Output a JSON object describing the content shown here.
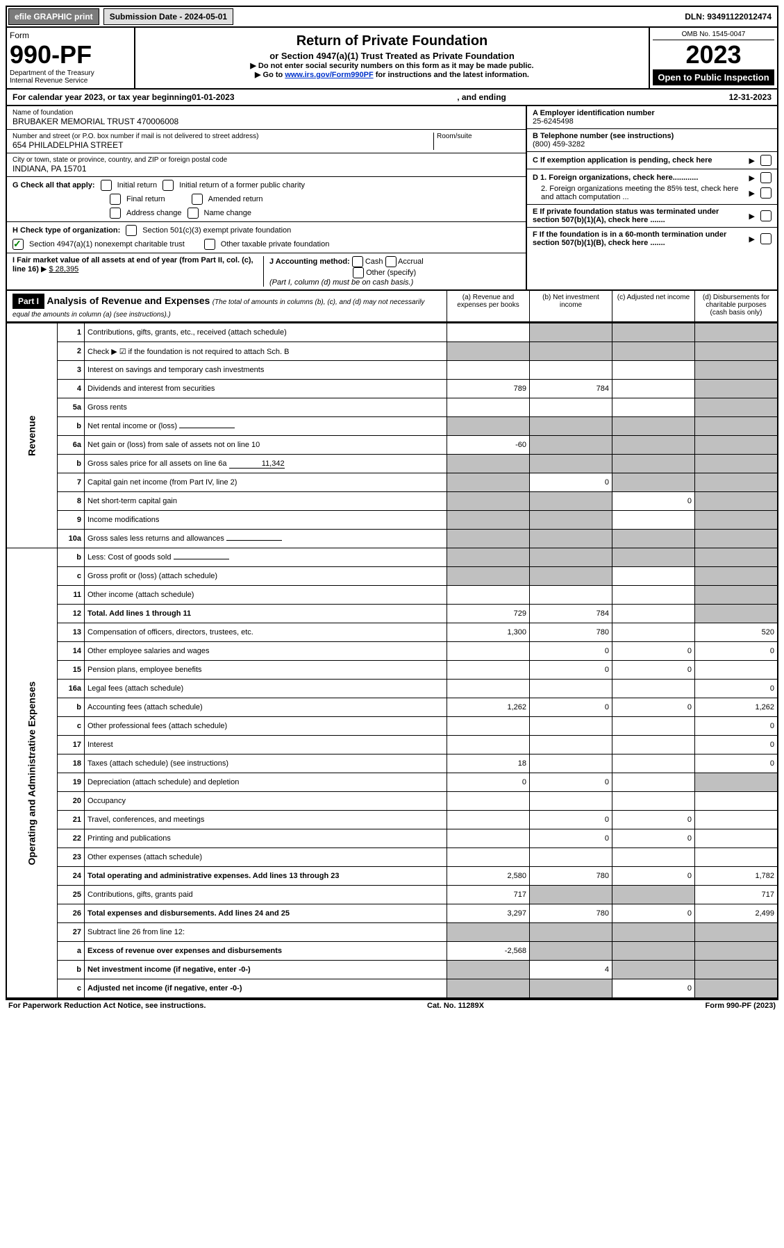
{
  "topbar": {
    "efile": "efile GRAPHIC print",
    "submission": "Submission Date - 2024-05-01",
    "dln": "DLN: 93491122012474"
  },
  "header": {
    "form": "Form",
    "number": "990-PF",
    "dept": "Department of the Treasury",
    "irs": "Internal Revenue Service",
    "title": "Return of Private Foundation",
    "subtitle": "or Section 4947(a)(1) Trust Treated as Private Foundation",
    "note1": "▶ Do not enter social security numbers on this form as it may be made public.",
    "note2_prefix": "▶ Go to ",
    "note2_link": "www.irs.gov/Form990PF",
    "note2_suffix": " for instructions and the latest information.",
    "omb": "OMB No. 1545-0047",
    "year": "2023",
    "open": "Open to Public Inspection"
  },
  "calyear": {
    "prefix": "For calendar year 2023, or tax year beginning ",
    "begin": "01-01-2023",
    "mid": " , and ending ",
    "end": "12-31-2023"
  },
  "info": {
    "name_label": "Name of foundation",
    "name": "BRUBAKER MEMORIAL TRUST 470006008",
    "addr_label": "Number and street (or P.O. box number if mail is not delivered to street address)",
    "addr": "654 PHILADELPHIA STREET",
    "room_label": "Room/suite",
    "city_label": "City or town, state or province, country, and ZIP or foreign postal code",
    "city": "INDIANA, PA  15701",
    "a_label": "A Employer identification number",
    "a_val": "25-6245498",
    "b_label": "B Telephone number (see instructions)",
    "b_val": "(800) 459-3282",
    "c_label": "C If exemption application is pending, check here",
    "d1": "D 1. Foreign organizations, check here............",
    "d2": "2. Foreign organizations meeting the 85% test, check here and attach computation ...",
    "e": "E  If private foundation status was terminated under section 507(b)(1)(A), check here .......",
    "f": "F  If the foundation is in a 60-month termination under section 507(b)(1)(B), check here .......",
    "g": "G Check all that apply:",
    "g_initial": "Initial return",
    "g_initial_former": "Initial return of a former public charity",
    "g_final": "Final return",
    "g_amended": "Amended return",
    "g_address": "Address change",
    "g_name": "Name change",
    "h": "H Check type of organization:",
    "h_501c3": "Section 501(c)(3) exempt private foundation",
    "h_4947": "Section 4947(a)(1) nonexempt charitable trust",
    "h_other": "Other taxable private foundation",
    "i": "I Fair market value of all assets at end of year (from Part II, col. (c), line 16)",
    "i_val": "$  28,395",
    "j": "J Accounting method:",
    "j_cash": "Cash",
    "j_accrual": "Accrual",
    "j_other": "Other (specify)",
    "j_note": "(Part I, column (d) must be on cash basis.)"
  },
  "part1": {
    "label": "Part I",
    "title": "Analysis of Revenue and Expenses",
    "title_note": " (The total of amounts in columns (b), (c), and (d) may not necessarily equal the amounts in column (a) (see instructions).)",
    "col_a": "(a) Revenue and expenses per books",
    "col_b": "(b) Net investment income",
    "col_c": "(c) Adjusted net income",
    "col_d": "(d) Disbursements for charitable purposes (cash basis only)"
  },
  "side": {
    "revenue": "Revenue",
    "expenses": "Operating and Administrative Expenses"
  },
  "rows": [
    {
      "n": "1",
      "label": "Contributions, gifts, grants, etc., received (attach schedule)",
      "a": "",
      "b": "gray",
      "c": "gray",
      "d": "gray"
    },
    {
      "n": "2",
      "label": "Check ▶ ☑ if the foundation is not required to attach Sch. B",
      "a": "gray",
      "b": "gray",
      "c": "gray",
      "d": "gray"
    },
    {
      "n": "3",
      "label": "Interest on savings and temporary cash investments",
      "a": "",
      "b": "",
      "c": "",
      "d": "gray"
    },
    {
      "n": "4",
      "label": "Dividends and interest from securities",
      "a": "789",
      "b": "784",
      "c": "",
      "d": "gray"
    },
    {
      "n": "5a",
      "label": "Gross rents",
      "a": "",
      "b": "",
      "c": "",
      "d": "gray"
    },
    {
      "n": "b",
      "label": "Net rental income or (loss)",
      "a": "gray",
      "b": "gray",
      "c": "gray",
      "d": "gray",
      "inline": ""
    },
    {
      "n": "6a",
      "label": "Net gain or (loss) from sale of assets not on line 10",
      "a": "-60",
      "b": "gray",
      "c": "gray",
      "d": "gray"
    },
    {
      "n": "b",
      "label": "Gross sales price for all assets on line 6a",
      "a": "gray",
      "b": "gray",
      "c": "gray",
      "d": "gray",
      "inline": "11,342"
    },
    {
      "n": "7",
      "label": "Capital gain net income (from Part IV, line 2)",
      "a": "gray",
      "b": "0",
      "c": "gray",
      "d": "gray"
    },
    {
      "n": "8",
      "label": "Net short-term capital gain",
      "a": "gray",
      "b": "gray",
      "c": "0",
      "d": "gray"
    },
    {
      "n": "9",
      "label": "Income modifications",
      "a": "gray",
      "b": "gray",
      "c": "",
      "d": "gray"
    },
    {
      "n": "10a",
      "label": "Gross sales less returns and allowances",
      "a": "gray",
      "b": "gray",
      "c": "gray",
      "d": "gray",
      "inline": ""
    },
    {
      "n": "b",
      "label": "Less: Cost of goods sold",
      "a": "gray",
      "b": "gray",
      "c": "gray",
      "d": "gray",
      "inline": ""
    },
    {
      "n": "c",
      "label": "Gross profit or (loss) (attach schedule)",
      "a": "gray",
      "b": "gray",
      "c": "",
      "d": "gray"
    },
    {
      "n": "11",
      "label": "Other income (attach schedule)",
      "a": "",
      "b": "",
      "c": "",
      "d": "gray"
    },
    {
      "n": "12",
      "label": "Total. Add lines 1 through 11",
      "bold": true,
      "a": "729",
      "b": "784",
      "c": "",
      "d": "gray"
    },
    {
      "n": "13",
      "label": "Compensation of officers, directors, trustees, etc.",
      "a": "1,300",
      "b": "780",
      "c": "",
      "d": "520"
    },
    {
      "n": "14",
      "label": "Other employee salaries and wages",
      "a": "",
      "b": "0",
      "c": "0",
      "d": "0"
    },
    {
      "n": "15",
      "label": "Pension plans, employee benefits",
      "a": "",
      "b": "0",
      "c": "0",
      "d": ""
    },
    {
      "n": "16a",
      "label": "Legal fees (attach schedule)",
      "a": "",
      "b": "",
      "c": "",
      "d": "0"
    },
    {
      "n": "b",
      "label": "Accounting fees (attach schedule)",
      "a": "1,262",
      "b": "0",
      "c": "0",
      "d": "1,262"
    },
    {
      "n": "c",
      "label": "Other professional fees (attach schedule)",
      "a": "",
      "b": "",
      "c": "",
      "d": "0"
    },
    {
      "n": "17",
      "label": "Interest",
      "a": "",
      "b": "",
      "c": "",
      "d": "0"
    },
    {
      "n": "18",
      "label": "Taxes (attach schedule) (see instructions)",
      "a": "18",
      "b": "",
      "c": "",
      "d": "0"
    },
    {
      "n": "19",
      "label": "Depreciation (attach schedule) and depletion",
      "a": "0",
      "b": "0",
      "c": "",
      "d": "gray"
    },
    {
      "n": "20",
      "label": "Occupancy",
      "a": "",
      "b": "",
      "c": "",
      "d": ""
    },
    {
      "n": "21",
      "label": "Travel, conferences, and meetings",
      "a": "",
      "b": "0",
      "c": "0",
      "d": ""
    },
    {
      "n": "22",
      "label": "Printing and publications",
      "a": "",
      "b": "0",
      "c": "0",
      "d": ""
    },
    {
      "n": "23",
      "label": "Other expenses (attach schedule)",
      "a": "",
      "b": "",
      "c": "",
      "d": ""
    },
    {
      "n": "24",
      "label": "Total operating and administrative expenses. Add lines 13 through 23",
      "bold": true,
      "a": "2,580",
      "b": "780",
      "c": "0",
      "d": "1,782"
    },
    {
      "n": "25",
      "label": "Contributions, gifts, grants paid",
      "a": "717",
      "b": "gray",
      "c": "gray",
      "d": "717"
    },
    {
      "n": "26",
      "label": "Total expenses and disbursements. Add lines 24 and 25",
      "bold": true,
      "a": "3,297",
      "b": "780",
      "c": "0",
      "d": "2,499"
    },
    {
      "n": "27",
      "label": "Subtract line 26 from line 12:",
      "a": "gray",
      "b": "gray",
      "c": "gray",
      "d": "gray"
    },
    {
      "n": "a",
      "label": "Excess of revenue over expenses and disbursements",
      "bold": true,
      "a": "-2,568",
      "b": "gray",
      "c": "gray",
      "d": "gray"
    },
    {
      "n": "b",
      "label": "Net investment income (if negative, enter -0-)",
      "bold": true,
      "a": "gray",
      "b": "4",
      "c": "gray",
      "d": "gray"
    },
    {
      "n": "c",
      "label": "Adjusted net income (if negative, enter -0-)",
      "bold": true,
      "a": "gray",
      "b": "gray",
      "c": "0",
      "d": "gray"
    }
  ],
  "footer": {
    "left": "For Paperwork Reduction Act Notice, see instructions.",
    "mid": "Cat. No. 11289X",
    "right": "Form 990-PF (2023)"
  }
}
